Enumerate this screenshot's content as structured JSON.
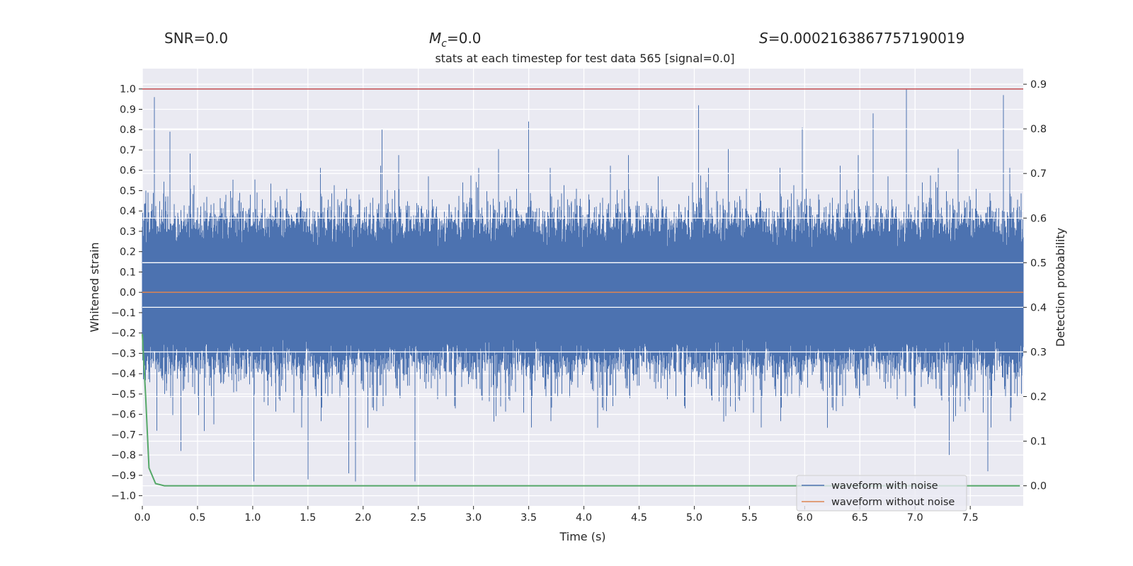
{
  "chart_data": {
    "type": "line",
    "stats": {
      "snr": "SNR=0.0",
      "mc_symbol": "M",
      "mc_sub": "c",
      "mc_value": "=0.0",
      "s_symbol": "S",
      "s_value": "=0.0002163867757190019"
    },
    "title": "stats at each timestep for test data 565 [signal=0.0]",
    "xlabel": "Time (s)",
    "ylabel_left": "Whitened strain",
    "ylabel_right": "Detection probability",
    "xlim": [
      0.0,
      7.98
    ],
    "ylim_left": [
      -1.05,
      1.1
    ],
    "ylim_right": [
      -0.045,
      0.935
    ],
    "x_ticks": [
      "0.0",
      "0.5",
      "1.0",
      "1.5",
      "2.0",
      "2.5",
      "3.0",
      "3.5",
      "4.0",
      "4.5",
      "5.0",
      "5.5",
      "6.0",
      "6.5",
      "7.0",
      "7.5"
    ],
    "y_ticks_left": [
      "1.0",
      "0.9",
      "0.8",
      "0.7",
      "0.6",
      "0.5",
      "0.4",
      "0.3",
      "0.2",
      "0.1",
      "0.0",
      "−0.1",
      "−0.2",
      "−0.3",
      "−0.4",
      "−0.5",
      "−0.6",
      "−0.7",
      "−0.8",
      "−0.9",
      "−1.0"
    ],
    "y_ticks_right": [
      "0.9",
      "0.8",
      "0.7",
      "0.6",
      "0.5",
      "0.4",
      "0.3",
      "0.2",
      "0.1",
      "0.0"
    ],
    "series": [
      {
        "name": "waveform with noise",
        "color": "#4c72b0",
        "axis": "left",
        "description": "whitened noisy strain sampled densely over 0–8 s, bulk within about ±0.35 with spikes up to about ±1.0",
        "spikes": [
          [
            0.11,
            0.96
          ],
          [
            0.25,
            0.79
          ],
          [
            0.35,
            -0.78
          ],
          [
            1.01,
            -0.93
          ],
          [
            1.5,
            -0.92
          ],
          [
            1.87,
            -0.89
          ],
          [
            1.93,
            -0.93
          ],
          [
            2.17,
            0.8
          ],
          [
            2.47,
            -0.93
          ],
          [
            3.5,
            0.84
          ],
          [
            5.04,
            0.92
          ],
          [
            5.98,
            0.81
          ],
          [
            6.62,
            0.88
          ],
          [
            6.92,
            1.0
          ],
          [
            7.31,
            -0.8
          ],
          [
            7.66,
            -0.88
          ],
          [
            7.8,
            0.97
          ]
        ]
      },
      {
        "name": "waveform without noise",
        "color": "#dd8452",
        "axis": "left",
        "x": [
          0.0,
          7.98
        ],
        "y": [
          0.0,
          0.0
        ]
      },
      {
        "name": "detection probability",
        "color": "#55a868",
        "axis": "right",
        "x": [
          0.0,
          0.03,
          0.06,
          0.12,
          0.2,
          0.3,
          7.95
        ],
        "y": [
          0.34,
          0.2,
          0.04,
          0.005,
          0.0,
          0.0,
          0.0
        ]
      },
      {
        "name": "threshold",
        "color": "#c44e52",
        "axis": "left",
        "x": [
          0.0,
          7.98
        ],
        "y": [
          1.0,
          1.0
        ]
      }
    ],
    "legend": {
      "position": "lower-right",
      "entries": [
        "waveform with noise",
        "waveform without noise"
      ]
    },
    "grid": true
  }
}
